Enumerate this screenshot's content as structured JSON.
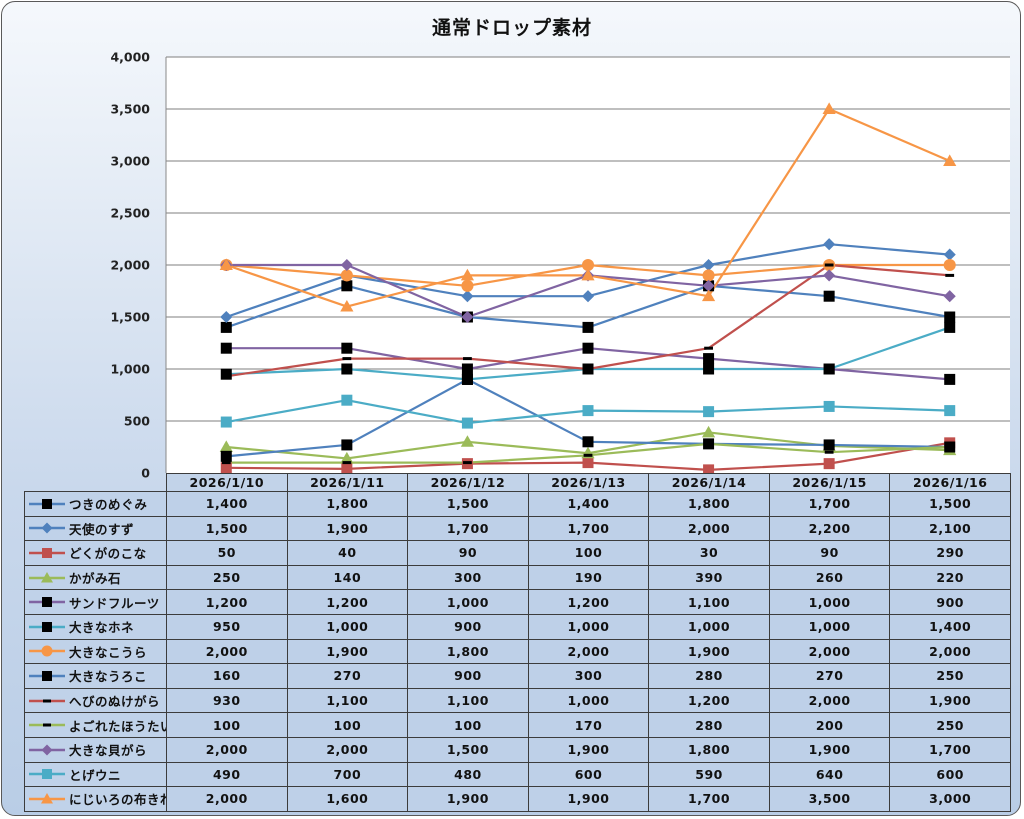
{
  "chart_data": {
    "type": "line",
    "title": "通常ドロップ素材",
    "xlabel": "",
    "ylabel": "",
    "ylim": [
      0,
      4000
    ],
    "yticks": [
      0,
      500,
      1000,
      1500,
      2000,
      2500,
      3000,
      3500,
      4000
    ],
    "ytick_labels": [
      "0",
      "500",
      "1,000",
      "1,500",
      "2,000",
      "2,500",
      "3,000",
      "3,500",
      "4,000"
    ],
    "grid": true,
    "legend": "data-table-left",
    "categories": [
      "2026/1/10",
      "2026/1/11",
      "2026/1/12",
      "2026/1/13",
      "2026/1/14",
      "2026/1/15",
      "2026/1/16"
    ],
    "series": [
      {
        "name": "つきのめぐみ",
        "color": "#4f81bd",
        "marker": "square-black",
        "values": [
          1400,
          1800,
          1500,
          1400,
          1800,
          1700,
          1500
        ],
        "labels": [
          "1,400",
          "1,800",
          "1,500",
          "1,400",
          "1,800",
          "1,700",
          "1,500"
        ]
      },
      {
        "name": "天使のすず",
        "color": "#4f81bd",
        "marker": "diamond",
        "values": [
          1500,
          1900,
          1700,
          1700,
          2000,
          2200,
          2100
        ],
        "labels": [
          "1,500",
          "1,900",
          "1,700",
          "1,700",
          "2,000",
          "2,200",
          "2,100"
        ]
      },
      {
        "name": "どくがのこな",
        "color": "#c0504d",
        "marker": "square",
        "values": [
          50,
          40,
          90,
          100,
          30,
          90,
          290
        ],
        "labels": [
          "50",
          "40",
          "90",
          "100",
          "30",
          "90",
          "290"
        ]
      },
      {
        "name": "かがみ石",
        "color": "#9bbb59",
        "marker": "triangle",
        "values": [
          250,
          140,
          300,
          190,
          390,
          260,
          220
        ],
        "labels": [
          "250",
          "140",
          "300",
          "190",
          "390",
          "260",
          "220"
        ]
      },
      {
        "name": "サンドフルーツ",
        "color": "#8064a2",
        "marker": "square-black",
        "values": [
          1200,
          1200,
          1000,
          1200,
          1100,
          1000,
          900
        ],
        "labels": [
          "1,200",
          "1,200",
          "1,000",
          "1,200",
          "1,100",
          "1,000",
          "900"
        ]
      },
      {
        "name": "大きなホネ",
        "color": "#4bacc6",
        "marker": "square-black",
        "values": [
          950,
          1000,
          900,
          1000,
          1000,
          1000,
          1400
        ],
        "labels": [
          "950",
          "1,000",
          "900",
          "1,000",
          "1,000",
          "1,000",
          "1,400"
        ]
      },
      {
        "name": "大きなこうら",
        "color": "#f79646",
        "marker": "circle",
        "values": [
          2000,
          1900,
          1800,
          2000,
          1900,
          2000,
          2000
        ],
        "labels": [
          "2,000",
          "1,900",
          "1,800",
          "2,000",
          "1,900",
          "2,000",
          "2,000"
        ]
      },
      {
        "name": "大きなうろこ",
        "color": "#4f81bd",
        "marker": "square-black",
        "values": [
          160,
          270,
          900,
          300,
          280,
          270,
          250
        ],
        "labels": [
          "160",
          "270",
          "900",
          "300",
          "280",
          "270",
          "250"
        ]
      },
      {
        "name": "へびのぬけがら",
        "color": "#c0504d",
        "marker": "dash-black",
        "values": [
          930,
          1100,
          1100,
          1000,
          1200,
          2000,
          1900
        ],
        "labels": [
          "930",
          "1,100",
          "1,100",
          "1,000",
          "1,200",
          "2,000",
          "1,900"
        ]
      },
      {
        "name": "よごれたほうたい",
        "color": "#9bbb59",
        "marker": "dash-black",
        "values": [
          100,
          100,
          100,
          170,
          280,
          200,
          250
        ],
        "labels": [
          "100",
          "100",
          "100",
          "170",
          "280",
          "200",
          "250"
        ]
      },
      {
        "name": "大きな貝がら",
        "color": "#8064a2",
        "marker": "diamond",
        "values": [
          2000,
          2000,
          1500,
          1900,
          1800,
          1900,
          1700
        ],
        "labels": [
          "2,000",
          "2,000",
          "1,500",
          "1,900",
          "1,800",
          "1,900",
          "1,700"
        ]
      },
      {
        "name": "とげウニ",
        "color": "#4bacc6",
        "marker": "square",
        "values": [
          490,
          700,
          480,
          600,
          590,
          640,
          600
        ],
        "labels": [
          "490",
          "700",
          "480",
          "600",
          "590",
          "640",
          "600"
        ]
      },
      {
        "name": "にじいろの布きれ",
        "color": "#f79646",
        "marker": "triangle",
        "values": [
          2000,
          1600,
          1900,
          1900,
          1700,
          3500,
          3000
        ],
        "labels": [
          "2,000",
          "1,600",
          "1,900",
          "1,900",
          "1,700",
          "3,500",
          "3,000"
        ]
      }
    ]
  }
}
